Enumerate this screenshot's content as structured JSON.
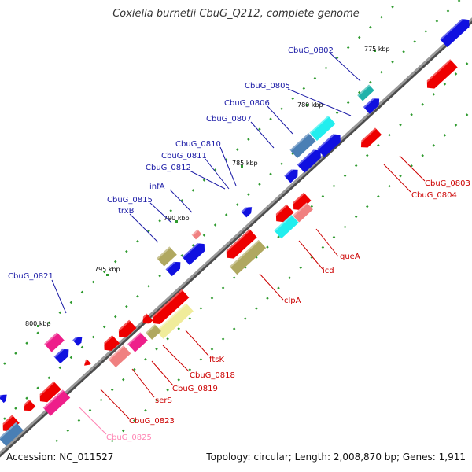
{
  "title": "Coxiella burnetii CbuG_Q212, complete genome",
  "accession_text": "Accession: NC_011527",
  "summary_text": "Topology: circular; Length: 2,008,870 bp; Genes: 1,911",
  "colors": {
    "backbone": "#8c8c8c",
    "cds_blue": "#1010e0",
    "cds_red": "#ee0000",
    "teal": "#20b2aa",
    "cyan": "#22eeee",
    "steel": "#4a7fb5",
    "magenta": "#ee1f8a",
    "pink": "#ff85b4",
    "olive": "#b0a860",
    "yellow": "#f0ec9a",
    "salmon": "#f08080",
    "plus_label": "#1a1aa6",
    "minus_label": "#cc0000",
    "faded_label": "#ff85b4",
    "dot": "#2e9a2e"
  },
  "ticks": [
    {
      "label": "775 kbp"
    },
    {
      "label": "780 kbp"
    },
    {
      "label": "785 kbp"
    },
    {
      "label": "790 kbp"
    },
    {
      "label": "795 kbp"
    },
    {
      "label": "800 kbp"
    }
  ],
  "plus_labels": [
    {
      "name": "CbuG_0802"
    },
    {
      "name": "CbuG_0805"
    },
    {
      "name": "CbuG_0806"
    },
    {
      "name": "CbuG_0807"
    },
    {
      "name": "CbuG_0810"
    },
    {
      "name": "CbuG_0811"
    },
    {
      "name": "CbuG_0812"
    },
    {
      "name": "infA"
    },
    {
      "name": "CbuG_0815"
    },
    {
      "name": "trxB"
    },
    {
      "name": "CbuG_0821"
    }
  ],
  "minus_labels": [
    {
      "name": "CbuG_0803"
    },
    {
      "name": "CbuG_0804"
    },
    {
      "name": "queA"
    },
    {
      "name": "icd"
    },
    {
      "name": "clpA"
    },
    {
      "name": "ftsK"
    },
    {
      "name": "CbuG_0818"
    },
    {
      "name": "CbuG_0819"
    },
    {
      "name": "serS"
    },
    {
      "name": "CbuG_0823"
    },
    {
      "name": "CbuG_0825"
    }
  ]
}
